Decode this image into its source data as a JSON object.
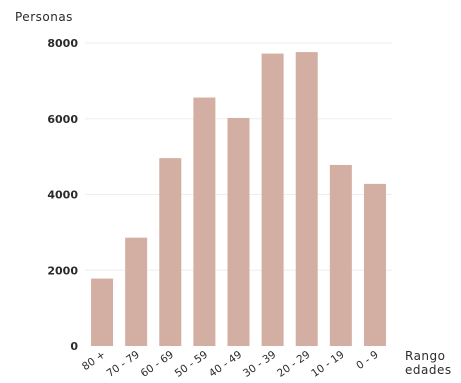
{
  "chart_data": {
    "type": "bar",
    "ylabel": "Personas",
    "xlabel": [
      "Rango",
      "edades"
    ],
    "categories": [
      "80 +",
      "70 - 79",
      "60 - 69",
      "50 - 59",
      "40 - 49",
      "30 - 39",
      "20 - 29",
      "10 - 19",
      "0 - 9"
    ],
    "values": [
      1780,
      2860,
      4960,
      6560,
      6020,
      7720,
      7760,
      4780,
      4280
    ],
    "yticks": [
      0,
      2000,
      4000,
      6000,
      8000
    ],
    "ylim": [
      0,
      8000
    ],
    "grid": true,
    "bar_color": "#d3aea3",
    "grid_color": "#eeeeee"
  }
}
